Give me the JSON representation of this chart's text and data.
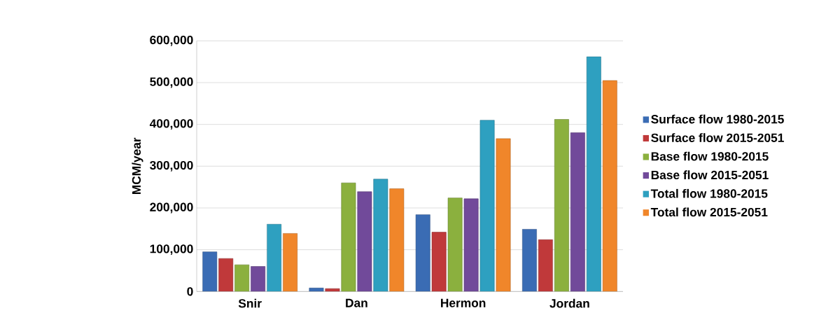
{
  "chart_data": {
    "type": "bar",
    "ylabel": "MCM/year",
    "categories": [
      "Snir",
      "Dan",
      "Hermon",
      "Jordan"
    ],
    "series": [
      {
        "name": "Surface flow 1980-2015",
        "color": "#3a6cb4",
        "values": [
          95000,
          8400,
          184000,
          149000
        ]
      },
      {
        "name": "Surface flow 2015-2051",
        "color": "#c0393a",
        "values": [
          79000,
          7000,
          142000,
          124000
        ]
      },
      {
        "name": "Base flow 1980-2015",
        "color": "#8bb03e",
        "values": [
          64000,
          260000,
          224000,
          412000
        ]
      },
      {
        "name": "Base flow 2015-2051",
        "color": "#714a9a",
        "values": [
          60000,
          239000,
          222000,
          380000
        ]
      },
      {
        "name": "Total flow 1980-2015",
        "color": "#2ea0c0",
        "values": [
          161000,
          269000,
          410000,
          562000
        ]
      },
      {
        "name": "Total flow 2015-2051",
        "color": "#f0862a",
        "values": [
          139000,
          246000,
          366000,
          505000
        ]
      }
    ],
    "ylim": [
      0,
      600000
    ],
    "yticks": [
      {
        "value": 0,
        "label": "0"
      },
      {
        "value": 100000,
        "label": "100,000"
      },
      {
        "value": 200000,
        "label": "200,000"
      },
      {
        "value": 300000,
        "label": "300,000"
      },
      {
        "value": 400000,
        "label": "400,000"
      },
      {
        "value": 500000,
        "label": "500,000"
      },
      {
        "value": 600000,
        "label": "600,000"
      }
    ],
    "grid": "y",
    "legend": "right"
  }
}
